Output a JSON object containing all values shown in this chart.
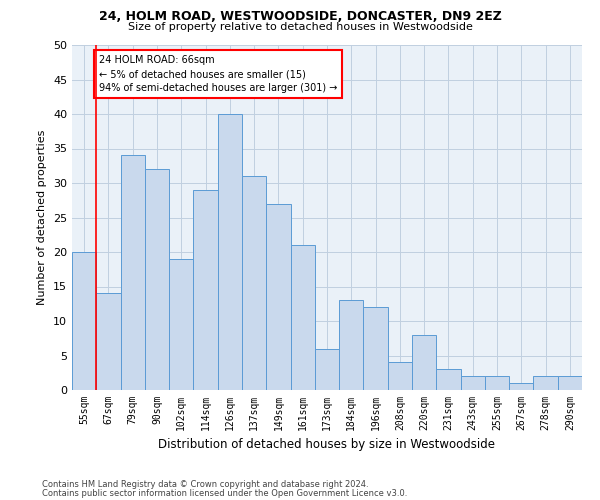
{
  "title1": "24, HOLM ROAD, WESTWOODSIDE, DONCASTER, DN9 2EZ",
  "title2": "Size of property relative to detached houses in Westwoodside",
  "xlabel": "Distribution of detached houses by size in Westwoodside",
  "ylabel": "Number of detached properties",
  "footer1": "Contains HM Land Registry data © Crown copyright and database right 2024.",
  "footer2": "Contains public sector information licensed under the Open Government Licence v3.0.",
  "categories": [
    "55sqm",
    "67sqm",
    "79sqm",
    "90sqm",
    "102sqm",
    "114sqm",
    "126sqm",
    "137sqm",
    "149sqm",
    "161sqm",
    "173sqm",
    "184sqm",
    "196sqm",
    "208sqm",
    "220sqm",
    "231sqm",
    "243sqm",
    "255sqm",
    "267sqm",
    "278sqm",
    "290sqm"
  ],
  "values": [
    20,
    14,
    34,
    32,
    19,
    29,
    40,
    31,
    27,
    21,
    6,
    13,
    12,
    4,
    8,
    3,
    2,
    2,
    1,
    2,
    2
  ],
  "bar_color": "#c9d9ed",
  "bar_edge_color": "#5b9bd5",
  "grid_color": "#c0cfe0",
  "background_color": "#eaf1f8",
  "annotation_text": "24 HOLM ROAD: 66sqm\n← 5% of detached houses are smaller (15)\n94% of semi-detached houses are larger (301) →",
  "annotation_box_color": "white",
  "annotation_box_edge_color": "red",
  "vline_color": "red",
  "ylim": [
    0,
    50
  ],
  "yticks": [
    0,
    5,
    10,
    15,
    20,
    25,
    30,
    35,
    40,
    45,
    50
  ]
}
